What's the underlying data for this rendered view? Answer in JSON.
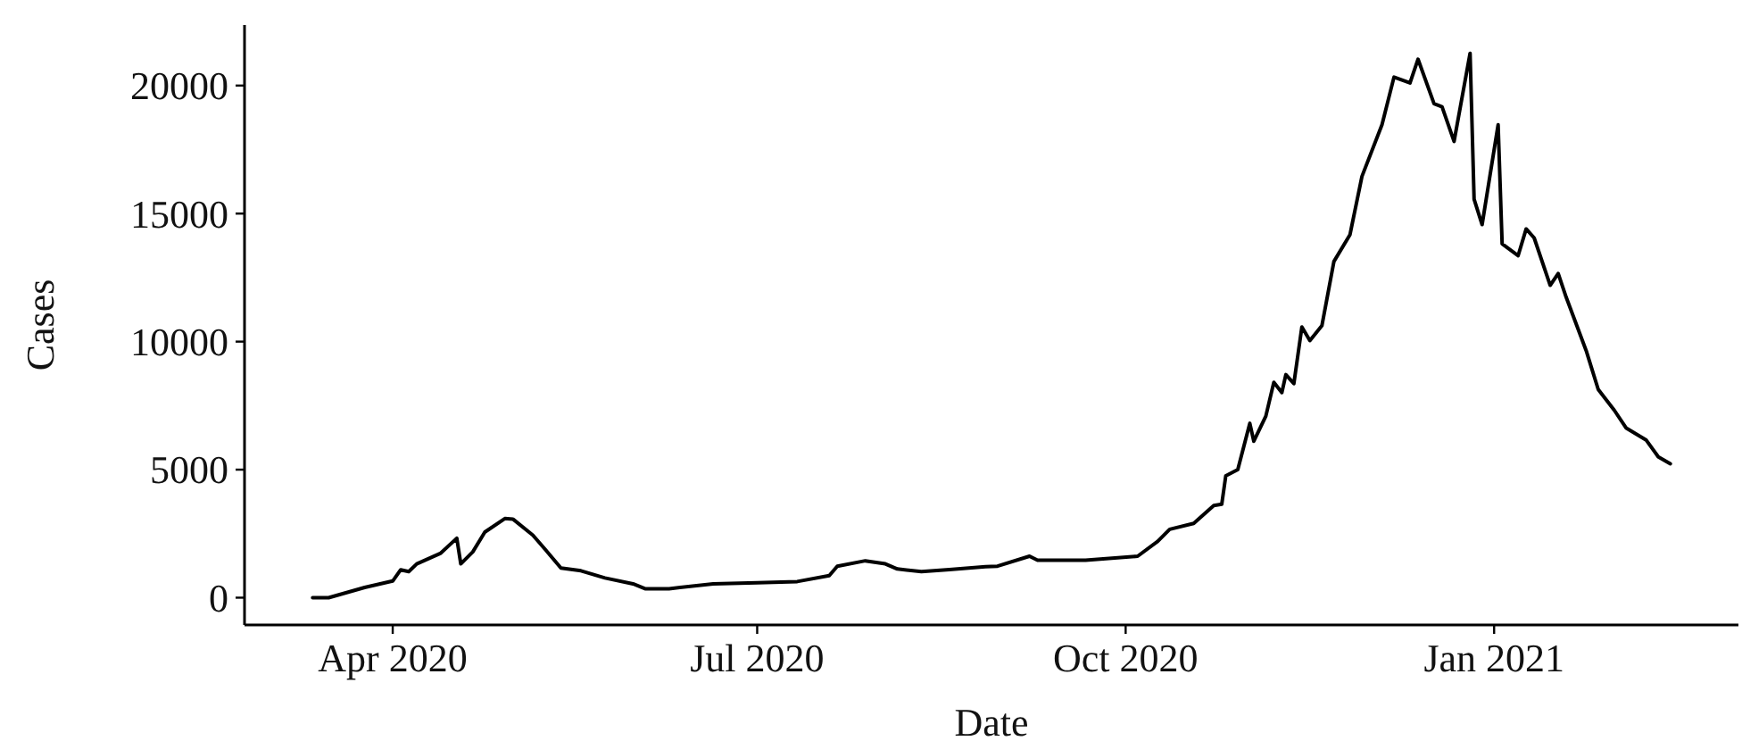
{
  "chart_data": {
    "type": "line",
    "xlabel": "Date",
    "ylabel": "Cases",
    "x": [
      "2020-03-12",
      "2020-03-16",
      "2020-03-25",
      "2020-04-01",
      "2020-04-03",
      "2020-04-05",
      "2020-04-07",
      "2020-04-13",
      "2020-04-17",
      "2020-04-18",
      "2020-04-21",
      "2020-04-24",
      "2020-04-29",
      "2020-05-01",
      "2020-05-06",
      "2020-05-09",
      "2020-05-13",
      "2020-05-18",
      "2020-05-24",
      "2020-05-31",
      "2020-06-03",
      "2020-06-09",
      "2020-06-20",
      "2020-07-01",
      "2020-07-11",
      "2020-07-19",
      "2020-07-21",
      "2020-07-28",
      "2020-08-02",
      "2020-08-05",
      "2020-08-11",
      "2020-08-18",
      "2020-08-27",
      "2020-08-30",
      "2020-09-07",
      "2020-09-09",
      "2020-09-21",
      "2020-10-04",
      "2020-10-09",
      "2020-10-12",
      "2020-10-18",
      "2020-10-23",
      "2020-10-25",
      "2020-10-26",
      "2020-10-29",
      "2020-11-01",
      "2020-11-02",
      "2020-11-05",
      "2020-11-07",
      "2020-11-09",
      "2020-11-10",
      "2020-11-12",
      "2020-11-14",
      "2020-11-16",
      "2020-11-19",
      "2020-11-22",
      "2020-11-26",
      "2020-11-29",
      "2020-12-04",
      "2020-12-07",
      "2020-12-11",
      "2020-12-13",
      "2020-12-17",
      "2020-12-19",
      "2020-12-22",
      "2020-12-26",
      "2020-12-27",
      "2020-12-29",
      "2021-01-02",
      "2021-01-03",
      "2021-01-07",
      "2021-01-09",
      "2021-01-11",
      "2021-01-15",
      "2021-01-17",
      "2021-01-19",
      "2021-01-24",
      "2021-01-27",
      "2021-01-31",
      "2021-02-03",
      "2021-02-08",
      "2021-02-11",
      "2021-02-14"
    ],
    "series": [
      {
        "color": "#000000",
        "values": [
          0,
          0,
          400,
          650,
          1090,
          1020,
          1320,
          1740,
          2320,
          1320,
          1790,
          2560,
          3090,
          3070,
          2440,
          1900,
          1160,
          1050,
          770,
          540,
          350,
          350,
          540,
          580,
          630,
          860,
          1230,
          1440,
          1320,
          1120,
          1020,
          1100,
          1210,
          1230,
          1620,
          1460,
          1460,
          1620,
          2200,
          2670,
          2900,
          3600,
          3650,
          4760,
          5000,
          6810,
          6110,
          7090,
          8410,
          8010,
          8710,
          8360,
          10570,
          10040,
          10620,
          13130,
          14170,
          16450,
          18470,
          20330,
          20100,
          21030,
          19290,
          19170,
          17820,
          21260,
          15560,
          14570,
          18470,
          13820,
          13360,
          14400,
          14050,
          12200,
          12660,
          11730,
          9640,
          8130,
          7320,
          6620,
          6150,
          5500,
          5230
        ]
      }
    ],
    "xlim": [
      "2020-02-24",
      "2021-03-03"
    ],
    "xticks": [
      {
        "value": "2020-04-01",
        "label": "Apr 2020"
      },
      {
        "value": "2020-07-01",
        "label": "Jul 2020"
      },
      {
        "value": "2020-10-01",
        "label": "Oct 2020"
      },
      {
        "value": "2021-01-01",
        "label": "Jan 2021"
      }
    ],
    "ylim": [
      -1065,
      22365
    ],
    "yticks": [
      0,
      5000,
      10000,
      15000,
      20000
    ],
    "grid": false,
    "marker": "none",
    "line_style": "solid"
  }
}
